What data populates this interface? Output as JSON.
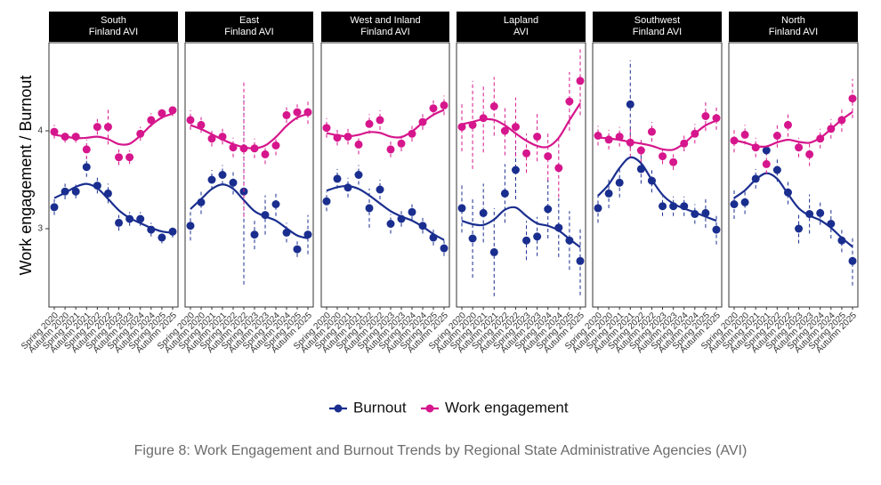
{
  "y_label": "Work engagement / Burnout",
  "caption": "Figure 8: Work Engagement and Burnout Trends by Regional State Administrative Agencies (AVI)",
  "chart_data": [
    {
      "type": "line",
      "title": "South\nFinland AVI",
      "categories": [
        "Spring 2020",
        "Autumn 2020",
        "Spring 2021",
        "Autumn 2021",
        "Spring 2022",
        "Autumn 2022",
        "Spring 2023",
        "Autumn 2023",
        "Spring 2024",
        "Autumn 2024",
        "Spring 2025",
        "Autumn 2025"
      ],
      "ylim": [
        2.2,
        4.9
      ],
      "yticks": [
        3,
        4
      ],
      "series": [
        {
          "name": "Burnout",
          "color": "#1a2e8f",
          "values": [
            3.22,
            3.38,
            3.38,
            3.63,
            3.44,
            3.36,
            3.06,
            3.1,
            3.1,
            2.99,
            2.91,
            2.97
          ],
          "errors": [
            0.08,
            0.08,
            0.07,
            0.1,
            0.08,
            0.1,
            0.08,
            0.07,
            0.07,
            0.07,
            0.06,
            0.06
          ]
        },
        {
          "name": "Work engagement",
          "color": "#d6168c",
          "values": [
            3.99,
            3.94,
            3.94,
            3.81,
            4.04,
            4.04,
            3.73,
            3.73,
            3.97,
            4.11,
            4.18,
            4.21
          ],
          "errors": [
            0.07,
            0.06,
            0.06,
            0.1,
            0.08,
            0.18,
            0.08,
            0.07,
            0.07,
            0.07,
            0.06,
            0.06
          ]
        }
      ]
    },
    {
      "type": "line",
      "title": "East\nFinland AVI",
      "categories": [
        "Spring 2020",
        "Autumn 2020",
        "Spring 2021",
        "Autumn 2021",
        "Spring 2022",
        "Autumn 2022",
        "Spring 2023",
        "Autumn 2023",
        "Spring 2024",
        "Autumn 2024",
        "Spring 2025",
        "Autumn 2025"
      ],
      "ylim": [
        2.2,
        4.9
      ],
      "yticks": [
        3,
        4
      ],
      "series": [
        {
          "name": "Burnout",
          "color": "#1a2e8f",
          "values": [
            3.03,
            3.27,
            3.5,
            3.55,
            3.47,
            3.38,
            2.94,
            3.14,
            3.25,
            2.96,
            2.79,
            2.94
          ],
          "errors": [
            0.15,
            0.12,
            0.1,
            0.1,
            0.12,
            0.95,
            0.15,
            0.2,
            0.12,
            0.1,
            0.08,
            0.2
          ]
        },
        {
          "name": "Work engagement",
          "color": "#d6168c",
          "values": [
            4.11,
            4.06,
            3.92,
            3.94,
            3.83,
            3.82,
            3.82,
            3.76,
            3.85,
            4.16,
            4.19,
            4.19
          ],
          "errors": [
            0.1,
            0.08,
            0.08,
            0.08,
            0.1,
            0.7,
            0.1,
            0.1,
            0.1,
            0.08,
            0.08,
            0.12
          ]
        }
      ]
    },
    {
      "type": "line",
      "title": "West and Inland\nFinland AVI",
      "categories": [
        "Spring 2020",
        "Autumn 2020",
        "Spring 2021",
        "Autumn 2021",
        "Spring 2022",
        "Autumn 2022",
        "Spring 2023",
        "Autumn 2023",
        "Spring 2024",
        "Autumn 2024",
        "Spring 2025",
        "Autumn 2025"
      ],
      "ylim": [
        2.2,
        4.9
      ],
      "yticks": [
        3,
        4
      ],
      "series": [
        {
          "name": "Burnout",
          "color": "#1a2e8f",
          "values": [
            3.28,
            3.51,
            3.42,
            3.55,
            3.21,
            3.4,
            3.05,
            3.1,
            3.17,
            3.03,
            2.91,
            2.8
          ],
          "errors": [
            0.1,
            0.1,
            0.1,
            0.1,
            0.2,
            0.1,
            0.1,
            0.08,
            0.08,
            0.08,
            0.08,
            0.08
          ]
        },
        {
          "name": "Work engagement",
          "color": "#d6168c",
          "values": [
            4.03,
            3.93,
            3.94,
            3.86,
            4.07,
            4.11,
            3.81,
            3.87,
            3.97,
            4.09,
            4.23,
            4.26
          ],
          "errors": [
            0.1,
            0.08,
            0.08,
            0.1,
            0.1,
            0.1,
            0.08,
            0.08,
            0.08,
            0.08,
            0.08,
            0.1
          ]
        }
      ]
    },
    {
      "type": "line",
      "title": "Lapland\nAVI",
      "categories": [
        "Spring 2020",
        "Autumn 2020",
        "Spring 2021",
        "Autumn 2021",
        "Spring 2022",
        "Autumn 2022",
        "Spring 2023",
        "Autumn 2023",
        "Spring 2024",
        "Autumn 2024",
        "Spring 2025",
        "Autumn 2025"
      ],
      "ylim": [
        2.2,
        4.9
      ],
      "yticks": [
        3,
        4
      ],
      "series": [
        {
          "name": "Burnout",
          "color": "#1a2e8f",
          "values": [
            3.21,
            2.9,
            3.16,
            2.76,
            3.36,
            3.6,
            2.88,
            2.92,
            3.2,
            3.01,
            2.88,
            2.67
          ],
          "errors": [
            0.25,
            0.4,
            0.3,
            0.45,
            0.3,
            0.3,
            0.2,
            0.2,
            0.3,
            0.3,
            0.3,
            0.35
          ]
        },
        {
          "name": "Work engagement",
          "color": "#d6168c",
          "values": [
            4.04,
            4.06,
            4.13,
            4.25,
            4.0,
            4.04,
            3.77,
            3.94,
            3.74,
            3.62,
            4.3,
            4.51
          ],
          "errors": [
            0.25,
            0.45,
            0.35,
            0.3,
            0.25,
            0.3,
            0.2,
            0.25,
            0.25,
            0.3,
            0.3,
            0.35
          ]
        }
      ]
    },
    {
      "type": "line",
      "title": "Southwest\nFinland AVI",
      "categories": [
        "Spring 2020",
        "Autumn 2020",
        "Spring 2021",
        "Autumn 2021",
        "Spring 2022",
        "Autumn 2022",
        "Spring 2023",
        "Autumn 2023",
        "Spring 2024",
        "Autumn 2024",
        "Spring 2025",
        "Autumn 2025"
      ],
      "ylim": [
        2.2,
        4.9
      ],
      "yticks": [
        3,
        4
      ],
      "series": [
        {
          "name": "Burnout",
          "color": "#1a2e8f",
          "values": [
            3.21,
            3.36,
            3.47,
            4.27,
            3.61,
            3.49,
            3.23,
            3.23,
            3.23,
            3.15,
            3.16,
            2.99
          ],
          "errors": [
            0.15,
            0.15,
            0.15,
            0.45,
            0.15,
            0.12,
            0.1,
            0.1,
            0.1,
            0.1,
            0.15,
            0.15
          ]
        },
        {
          "name": "Work engagement",
          "color": "#d6168c",
          "values": [
            3.95,
            3.91,
            3.94,
            3.88,
            3.8,
            3.99,
            3.74,
            3.68,
            3.87,
            3.97,
            4.15,
            4.13
          ],
          "errors": [
            0.1,
            0.1,
            0.1,
            0.15,
            0.12,
            0.1,
            0.08,
            0.08,
            0.08,
            0.1,
            0.15,
            0.12
          ]
        }
      ]
    },
    {
      "type": "line",
      "title": "North\nFinland AVI",
      "categories": [
        "Spring 2020",
        "Autumn 2020",
        "Spring 2021",
        "Autumn 2021",
        "Spring 2022",
        "Autumn 2022",
        "Spring 2023",
        "Autumn 2023",
        "Spring 2024",
        "Autumn 2024",
        "Spring 2025",
        "Autumn 2025"
      ],
      "ylim": [
        2.2,
        4.9
      ],
      "yticks": [
        3,
        4
      ],
      "series": [
        {
          "name": "Burnout",
          "color": "#1a2e8f",
          "values": [
            3.25,
            3.27,
            3.51,
            3.8,
            3.6,
            3.37,
            3.0,
            3.15,
            3.16,
            3.05,
            2.88,
            2.67
          ],
          "errors": [
            0.15,
            0.12,
            0.1,
            0.05,
            0.12,
            0.12,
            0.15,
            0.2,
            0.12,
            0.15,
            0.12,
            0.25
          ]
        },
        {
          "name": "Work engagement",
          "color": "#d6168c",
          "values": [
            3.9,
            3.96,
            3.83,
            3.66,
            3.95,
            4.06,
            3.83,
            3.76,
            3.92,
            4.02,
            4.11,
            4.33
          ],
          "errors": [
            0.12,
            0.1,
            0.1,
            0.1,
            0.12,
            0.12,
            0.1,
            0.12,
            0.1,
            0.1,
            0.12,
            0.2
          ]
        }
      ]
    }
  ]
}
